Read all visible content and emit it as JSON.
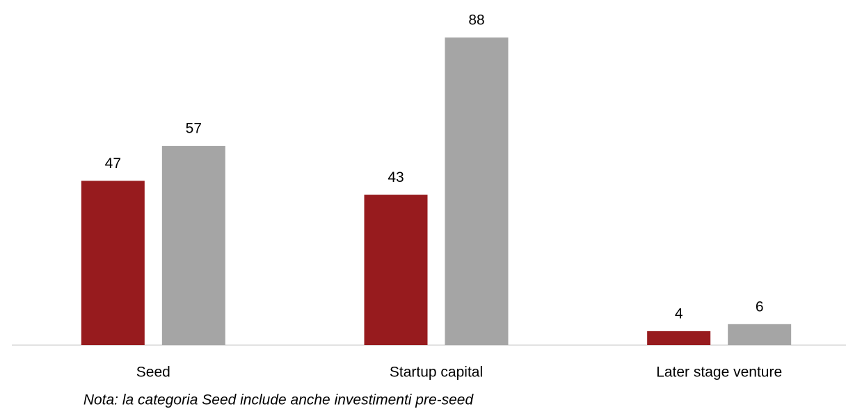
{
  "chart_data": {
    "type": "bar",
    "categories": [
      "Seed",
      "Startup capital",
      "Later stage venture"
    ],
    "series": [
      {
        "color": "#971b1e",
        "values": [
          47,
          43,
          4
        ]
      },
      {
        "color": "#a5a5a5",
        "values": [
          57,
          88,
          6
        ]
      }
    ],
    "ylim": [
      0,
      88
    ],
    "note": "Nota: la categoria Seed include anche investimenti pre-seed"
  }
}
